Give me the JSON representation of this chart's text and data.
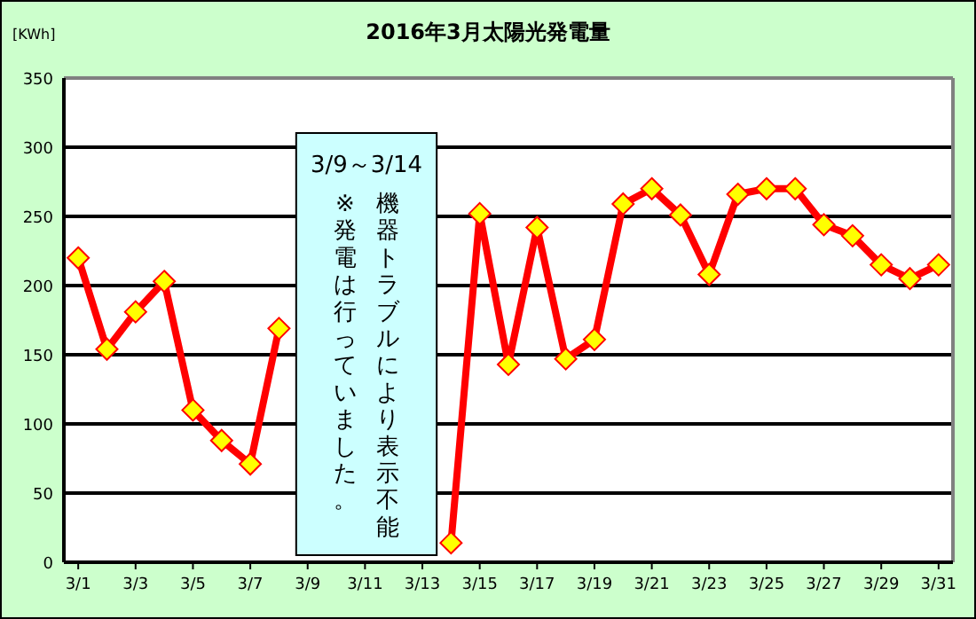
{
  "chart_data": {
    "type": "line",
    "title": "2016年3月太陽光発電量",
    "ylabel": "[KWh]",
    "categories": [
      "3/1",
      null,
      "3/3",
      null,
      "3/5",
      null,
      "3/7",
      null,
      "3/9",
      null,
      "3/11",
      null,
      "3/13",
      null,
      "3/15",
      null,
      "3/17",
      null,
      "3/19",
      null,
      "3/21",
      null,
      "3/23",
      null,
      "3/25",
      null,
      "3/27",
      null,
      "3/29",
      null,
      "3/31"
    ],
    "series": [
      {
        "color": "#ff0000",
        "values": [
          220,
          154,
          181,
          203,
          110,
          88,
          71,
          169,
          null,
          null,
          null,
          null,
          null,
          14,
          252,
          143,
          242,
          147,
          161,
          259,
          270,
          251,
          208,
          266,
          270,
          270,
          244,
          236,
          215,
          205,
          215
        ]
      }
    ],
    "ylim": [
      0,
      350
    ],
    "yticks": [
      0,
      50,
      100,
      150,
      200,
      250,
      300,
      350
    ],
    "grid": "y",
    "marker": "diamond",
    "line_style": "solid",
    "annotations": [
      "3/9～3/14",
      "機器トラブルにより表示不能",
      "※発電は行っていました。"
    ]
  }
}
